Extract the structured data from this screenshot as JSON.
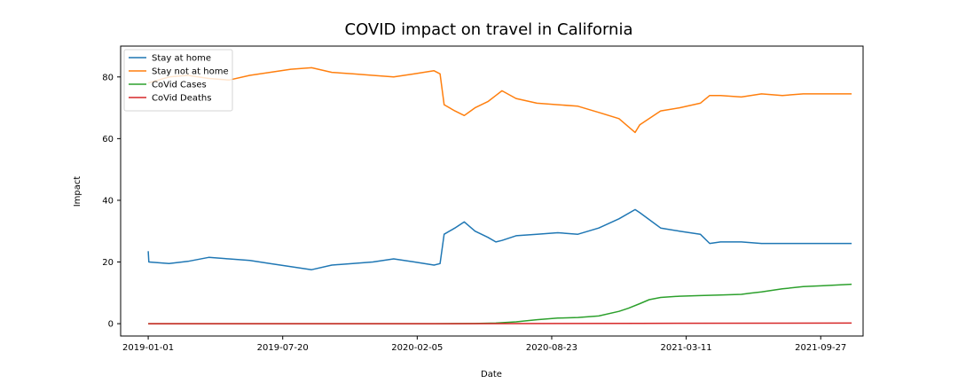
{
  "chart_data": {
    "type": "line",
    "title": "COVID impact on travel in California",
    "xlabel": "Date",
    "ylabel": "Impact",
    "xlim": [
      "2018-11-21",
      "2021-11-29"
    ],
    "ylim": [
      -4,
      90
    ],
    "x_ticks": [
      "2019-01-01",
      "2019-07-20",
      "2020-02-05",
      "2020-08-23",
      "2021-03-11",
      "2021-09-27"
    ],
    "y_ticks": [
      0,
      20,
      40,
      60,
      80
    ],
    "grid": false,
    "legend_position": "top-left",
    "series": [
      {
        "name": "Stay at home",
        "color": "#1f77b4",
        "points": [
          [
            "2019-01-01",
            23.5
          ],
          [
            "2019-01-02",
            20.0
          ],
          [
            "2019-02-01",
            19.5
          ],
          [
            "2019-03-01",
            20.2
          ],
          [
            "2019-04-01",
            21.5
          ],
          [
            "2019-05-01",
            21.0
          ],
          [
            "2019-06-01",
            20.5
          ],
          [
            "2019-07-01",
            19.5
          ],
          [
            "2019-08-01",
            18.5
          ],
          [
            "2019-09-01",
            17.5
          ],
          [
            "2019-10-01",
            19.0
          ],
          [
            "2019-11-01",
            19.5
          ],
          [
            "2019-12-01",
            20.0
          ],
          [
            "2020-01-01",
            21.0
          ],
          [
            "2020-02-01",
            20.0
          ],
          [
            "2020-03-01",
            19.0
          ],
          [
            "2020-03-10",
            19.5
          ],
          [
            "2020-03-16",
            29.0
          ],
          [
            "2020-04-01",
            31.0
          ],
          [
            "2020-04-15",
            33.0
          ],
          [
            "2020-05-01",
            30.0
          ],
          [
            "2020-05-20",
            28.0
          ],
          [
            "2020-06-01",
            26.5
          ],
          [
            "2020-06-10",
            27.0
          ],
          [
            "2020-07-01",
            28.5
          ],
          [
            "2020-08-01",
            29.0
          ],
          [
            "2020-09-01",
            29.5
          ],
          [
            "2020-10-01",
            29.0
          ],
          [
            "2020-11-01",
            31.0
          ],
          [
            "2020-12-01",
            34.0
          ],
          [
            "2020-12-25",
            37.0
          ],
          [
            "2021-01-01",
            36.0
          ],
          [
            "2021-02-01",
            31.0
          ],
          [
            "2021-03-01",
            30.0
          ],
          [
            "2021-04-01",
            29.0
          ],
          [
            "2021-04-15",
            26.0
          ],
          [
            "2021-05-01",
            26.5
          ],
          [
            "2021-06-01",
            26.5
          ],
          [
            "2021-07-01",
            26.0
          ],
          [
            "2021-08-01",
            26.0
          ],
          [
            "2021-09-01",
            26.0
          ],
          [
            "2021-10-01",
            26.0
          ],
          [
            "2021-11-12",
            26.0
          ]
        ]
      },
      {
        "name": "Stay not at home",
        "color": "#ff7f0e",
        "points": [
          [
            "2019-01-01",
            78.0
          ],
          [
            "2019-02-01",
            80.0
          ],
          [
            "2019-03-01",
            80.5
          ],
          [
            "2019-04-01",
            79.5
          ],
          [
            "2019-05-01",
            79.0
          ],
          [
            "2019-06-01",
            80.5
          ],
          [
            "2019-07-01",
            81.5
          ],
          [
            "2019-08-01",
            82.5
          ],
          [
            "2019-09-01",
            83.0
          ],
          [
            "2019-10-01",
            81.5
          ],
          [
            "2019-11-01",
            81.0
          ],
          [
            "2019-12-01",
            80.5
          ],
          [
            "2020-01-01",
            80.0
          ],
          [
            "2020-02-01",
            81.0
          ],
          [
            "2020-03-01",
            82.0
          ],
          [
            "2020-03-10",
            81.0
          ],
          [
            "2020-03-16",
            71.0
          ],
          [
            "2020-04-01",
            69.0
          ],
          [
            "2020-04-15",
            67.5
          ],
          [
            "2020-05-01",
            70.0
          ],
          [
            "2020-05-20",
            72.0
          ],
          [
            "2020-06-01",
            74.0
          ],
          [
            "2020-06-10",
            75.5
          ],
          [
            "2020-07-01",
            73.0
          ],
          [
            "2020-08-01",
            71.5
          ],
          [
            "2020-09-01",
            71.0
          ],
          [
            "2020-10-01",
            70.5
          ],
          [
            "2020-11-01",
            68.5
          ],
          [
            "2020-12-01",
            66.5
          ],
          [
            "2020-12-25",
            62.0
          ],
          [
            "2021-01-01",
            64.5
          ],
          [
            "2021-02-01",
            69.0
          ],
          [
            "2021-03-01",
            70.0
          ],
          [
            "2021-04-01",
            71.5
          ],
          [
            "2021-04-15",
            74.0
          ],
          [
            "2021-05-01",
            74.0
          ],
          [
            "2021-06-01",
            73.5
          ],
          [
            "2021-07-01",
            74.5
          ],
          [
            "2021-08-01",
            74.0
          ],
          [
            "2021-09-01",
            74.5
          ],
          [
            "2021-10-01",
            74.5
          ],
          [
            "2021-11-12",
            74.5
          ]
        ]
      },
      {
        "name": "CoVid Cases",
        "color": "#2ca02c",
        "points": [
          [
            "2019-01-01",
            0.0
          ],
          [
            "2020-03-01",
            0.0
          ],
          [
            "2020-05-01",
            0.05
          ],
          [
            "2020-06-01",
            0.2
          ],
          [
            "2020-07-01",
            0.6
          ],
          [
            "2020-08-01",
            1.3
          ],
          [
            "2020-09-01",
            1.8
          ],
          [
            "2020-10-01",
            2.0
          ],
          [
            "2020-11-01",
            2.5
          ],
          [
            "2020-12-01",
            4.0
          ],
          [
            "2020-12-15",
            5.0
          ],
          [
            "2021-01-01",
            6.5
          ],
          [
            "2021-01-15",
            7.8
          ],
          [
            "2021-02-01",
            8.5
          ],
          [
            "2021-03-01",
            8.9
          ],
          [
            "2021-04-01",
            9.1
          ],
          [
            "2021-05-01",
            9.3
          ],
          [
            "2021-06-01",
            9.5
          ],
          [
            "2021-06-15",
            9.9
          ],
          [
            "2021-07-01",
            10.3
          ],
          [
            "2021-08-01",
            11.3
          ],
          [
            "2021-09-01",
            12.0
          ],
          [
            "2021-10-01",
            12.3
          ],
          [
            "2021-11-12",
            12.8
          ]
        ]
      },
      {
        "name": "CoVid Deaths",
        "color": "#d62728",
        "points": [
          [
            "2019-01-01",
            0.0
          ],
          [
            "2020-03-01",
            0.0
          ],
          [
            "2020-09-01",
            0.05
          ],
          [
            "2021-01-01",
            0.1
          ],
          [
            "2021-11-12",
            0.2
          ]
        ]
      }
    ]
  }
}
